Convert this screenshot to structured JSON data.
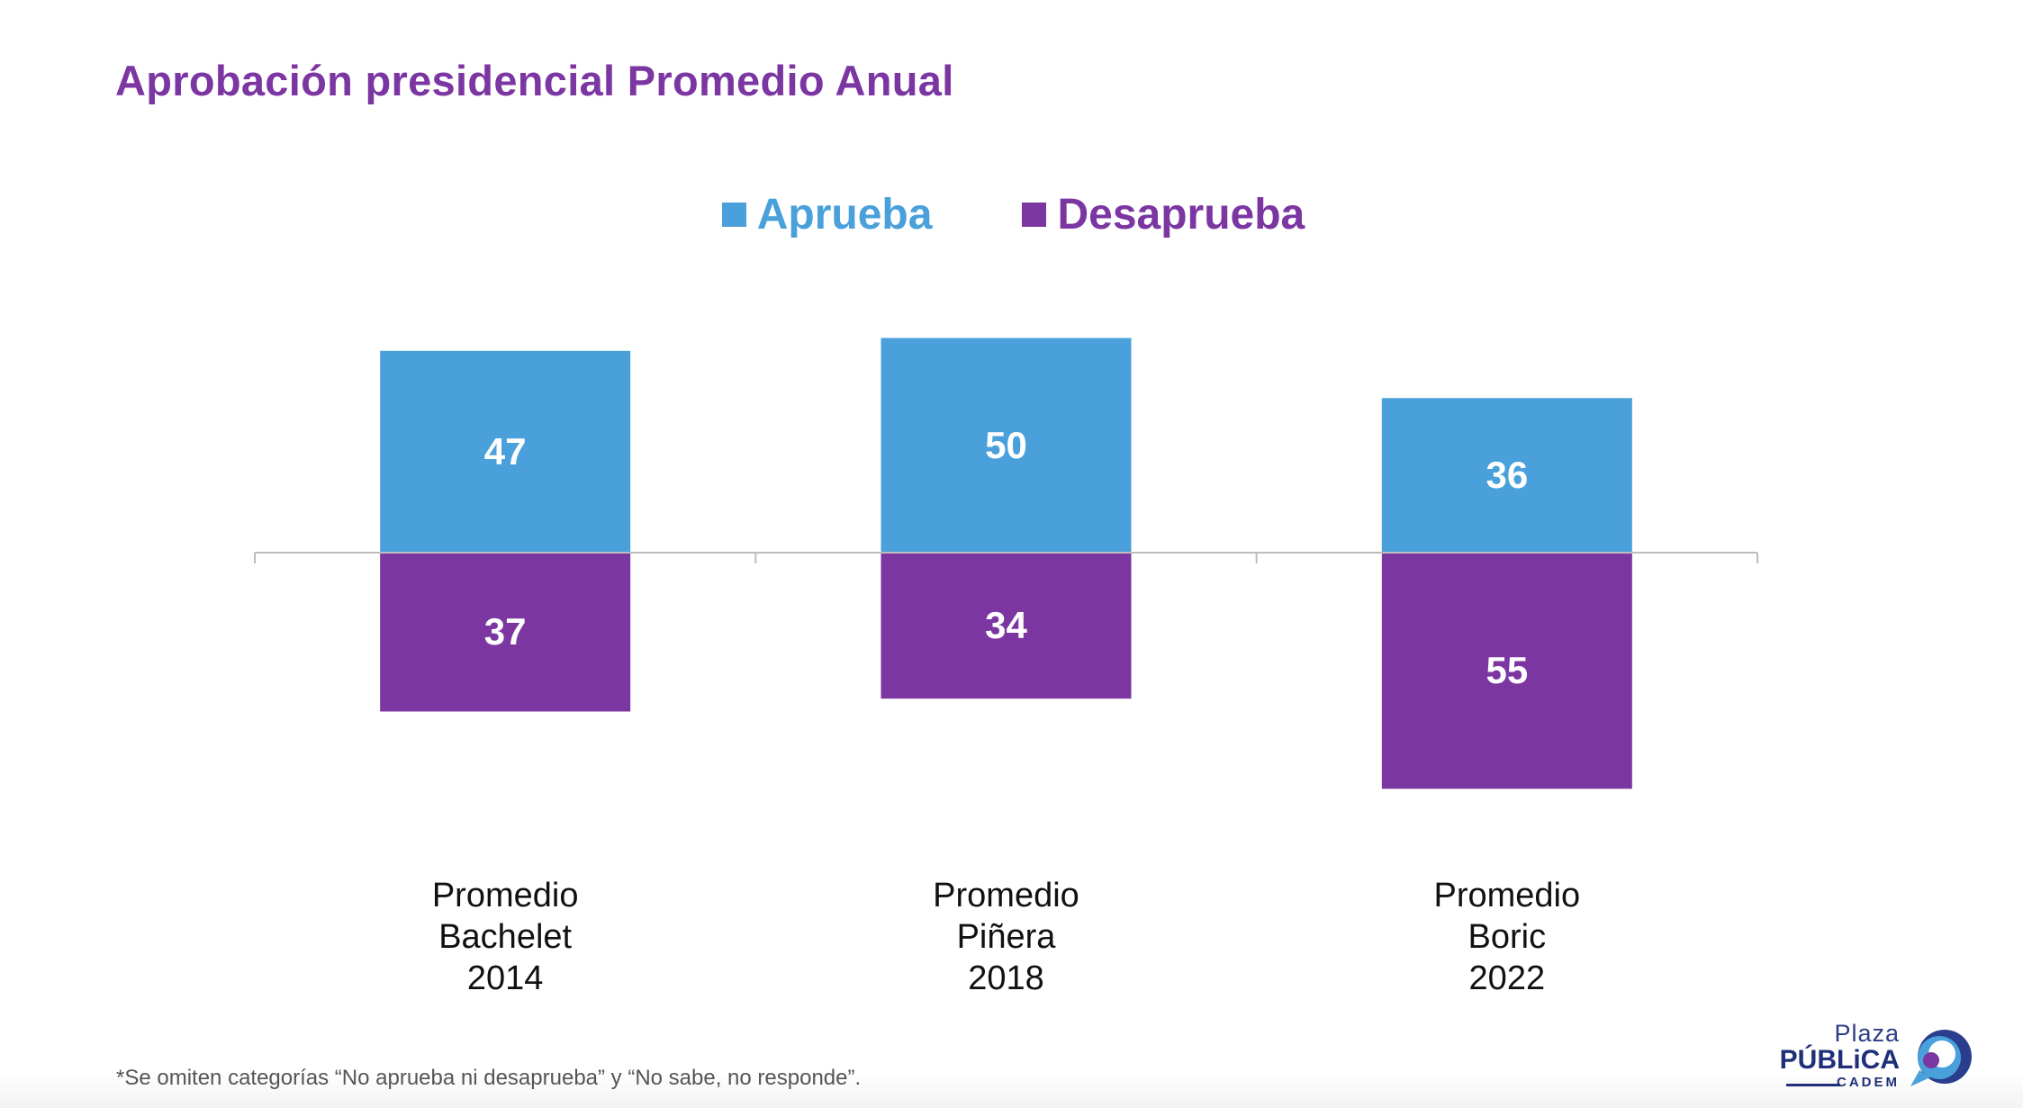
{
  "colors": {
    "approve": "#49a0da",
    "disapprove": "#7b36a2",
    "axis": "#bdbdbd",
    "bar_label": "#ffffff"
  },
  "chart_data": {
    "type": "bar",
    "title": "Aprobación presidencial Promedio Anual",
    "categories": [
      "Promedio\nBachelet\n2014",
      "Promedio\nPiñera\n2018",
      "Promedio\nBoric\n2022"
    ],
    "series": [
      {
        "name": "Aprueba",
        "values": [
          47,
          50,
          36
        ],
        "direction": "up"
      },
      {
        "name": "Desaprueba",
        "values": [
          37,
          34,
          55
        ],
        "direction": "down"
      }
    ],
    "legend_position": "top-center",
    "grid": false,
    "ylim": [
      -55,
      50
    ]
  },
  "footnote": "*Se omiten categorías “No aprueba ni desaprueba” y “No sabe, no responde”.",
  "logo": {
    "line1": "Plaza",
    "line2": "PÚBLiCA",
    "line3": "CADEM"
  }
}
